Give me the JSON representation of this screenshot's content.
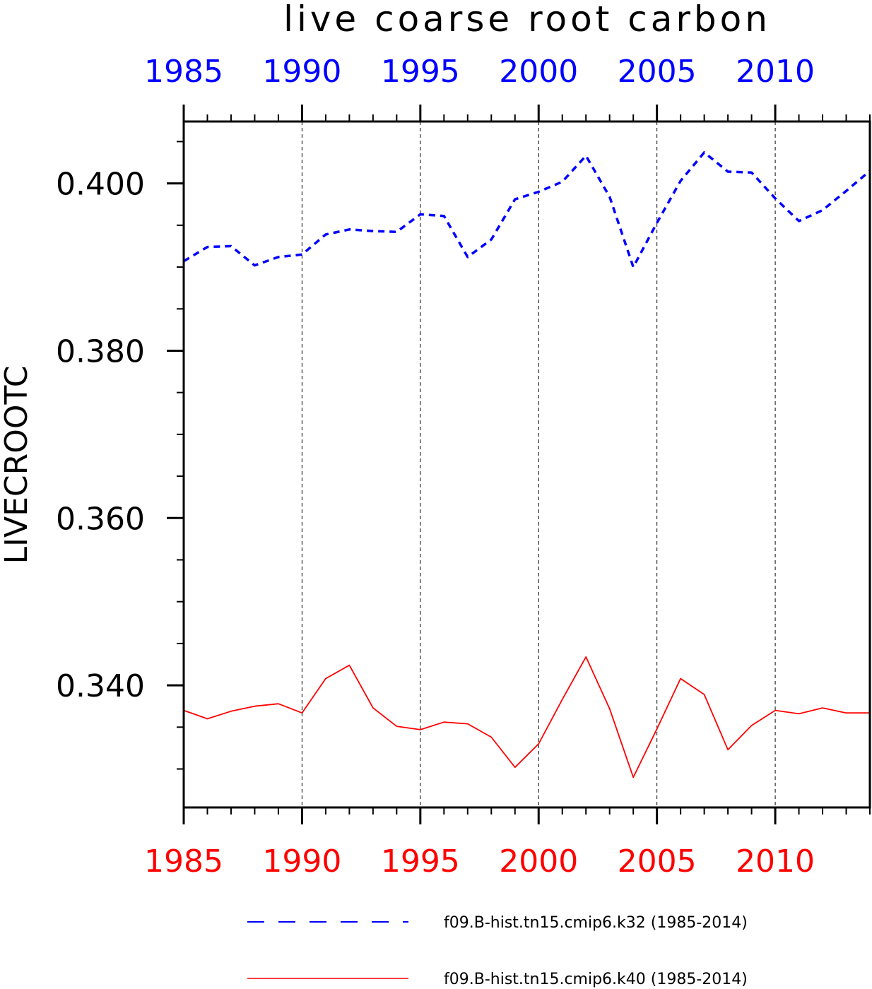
{
  "chart_data": {
    "type": "line",
    "title": "live coarse root carbon",
    "ylabel": "LIVECROOTC",
    "xlim": [
      1985,
      2014
    ],
    "ylim": [
      0.3254,
      0.4074
    ],
    "x_ticks": [
      1985,
      1990,
      1995,
      2000,
      2005,
      2010
    ],
    "y_ticks": [
      0.34,
      0.36,
      0.38,
      0.4
    ],
    "y_tick_labels": [
      "0.340",
      "0.360",
      "0.380",
      "0.400"
    ],
    "grid": "vertical dashed at major x ticks",
    "legend": "bottom",
    "x": [
      1985,
      1986,
      1987,
      1988,
      1989,
      1990,
      1991,
      1992,
      1993,
      1994,
      1995,
      1996,
      1997,
      1998,
      1999,
      2000,
      2001,
      2002,
      2003,
      2004,
      2005,
      2006,
      2007,
      2008,
      2009,
      2010,
      2011,
      2012,
      2013,
      2014
    ],
    "series": [
      {
        "name": "f09.B-hist.tn15.cmip6.k32 (1985-2014)",
        "color": "#0000ff",
        "style": "dashed",
        "values": [
          0.3907,
          0.3924,
          0.3925,
          0.3902,
          0.3912,
          0.3915,
          0.3939,
          0.3945,
          0.3943,
          0.3942,
          0.3963,
          0.3961,
          0.3912,
          0.3933,
          0.3981,
          0.399,
          0.4002,
          0.4033,
          0.3984,
          0.39,
          0.3953,
          0.4003,
          0.4037,
          0.4014,
          0.4013,
          0.3982,
          0.3955,
          0.3968,
          0.3991,
          0.4015
        ]
      },
      {
        "name": "f09.B-hist.tn15.cmip6.k40 (1985-2014)",
        "color": "#ff0000",
        "style": "solid",
        "values": [
          0.337,
          0.336,
          0.3369,
          0.3375,
          0.3378,
          0.3367,
          0.3408,
          0.3424,
          0.3373,
          0.3351,
          0.3347,
          0.3356,
          0.3354,
          0.3338,
          0.3302,
          0.333,
          0.3383,
          0.3434,
          0.3372,
          0.329,
          0.3348,
          0.3408,
          0.3389,
          0.3323,
          0.3352,
          0.337,
          0.3366,
          0.3373,
          0.3367,
          0.3367
        ]
      }
    ]
  }
}
